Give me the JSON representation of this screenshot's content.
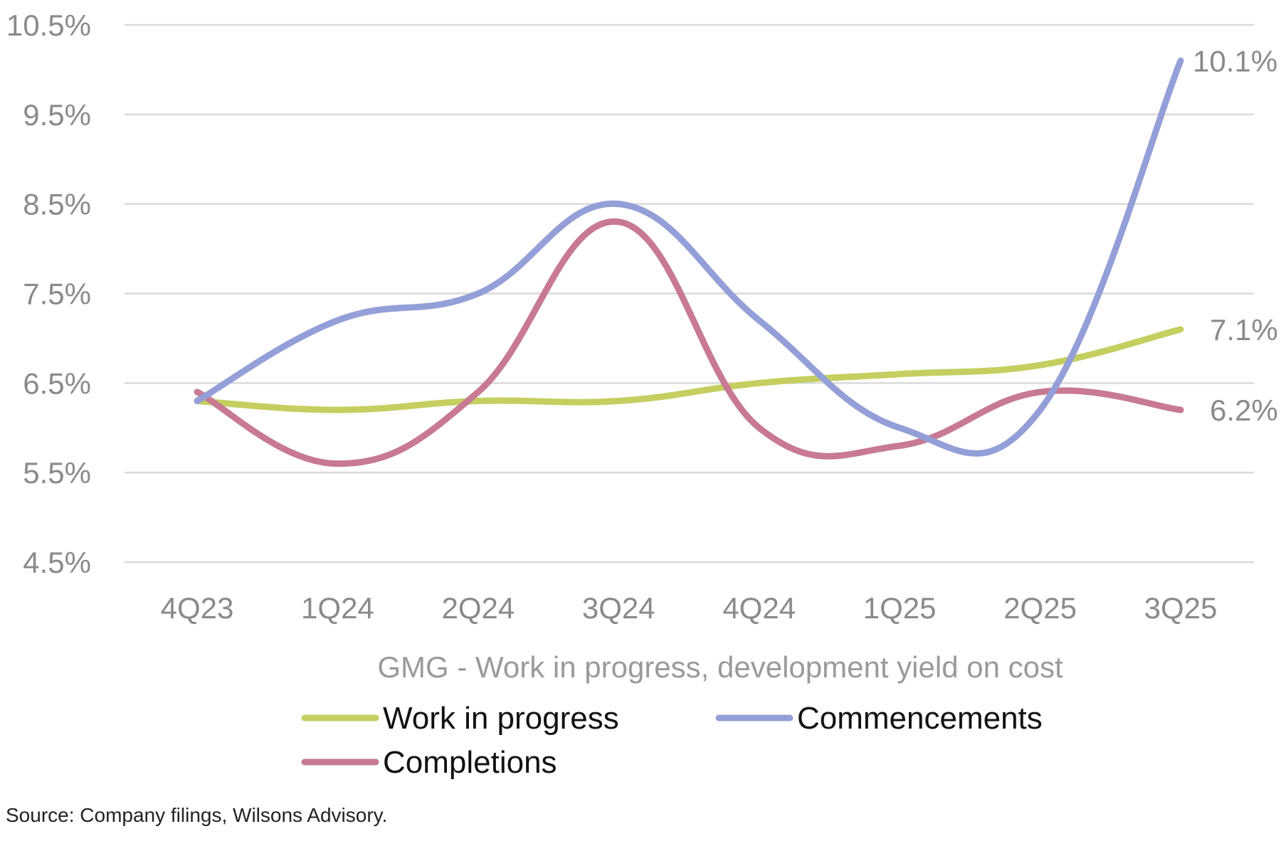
{
  "chart_data": {
    "type": "line",
    "title": "",
    "subtitle": "GMG -  Work in progress, development yield on cost",
    "xlabel": "",
    "ylabel": "",
    "categories": [
      "4Q23",
      "1Q24",
      "2Q24",
      "3Q24",
      "4Q24",
      "1Q25",
      "2Q25",
      "3Q25"
    ],
    "ylim": [
      4.5,
      10.5
    ],
    "y_ticks": [
      4.5,
      5.5,
      6.5,
      7.5,
      8.5,
      9.5,
      10.5
    ],
    "y_tick_labels": [
      "4.5%",
      "5.5%",
      "6.5%",
      "7.5%",
      "8.5%",
      "9.5%",
      "10.5%"
    ],
    "grid": true,
    "smooth": true,
    "legend_position": "bottom",
    "series": [
      {
        "name": "Work in progress",
        "color": "#c4cf60",
        "values": [
          6.3,
          6.2,
          6.3,
          6.3,
          6.5,
          6.6,
          6.7,
          7.1
        ],
        "end_label": "7.1%"
      },
      {
        "name": "Commencements",
        "color": "#949fd8",
        "values": [
          6.3,
          7.2,
          7.5,
          8.5,
          7.2,
          6.0,
          6.2,
          10.1
        ],
        "end_label": "10.1%"
      },
      {
        "name": "Completions",
        "color": "#c77a92",
        "values": [
          6.4,
          5.6,
          6.4,
          8.3,
          6.0,
          5.8,
          6.4,
          6.2
        ],
        "end_label": "6.2%"
      }
    ],
    "source": "Source: Company filings, Wilsons Advisory."
  }
}
